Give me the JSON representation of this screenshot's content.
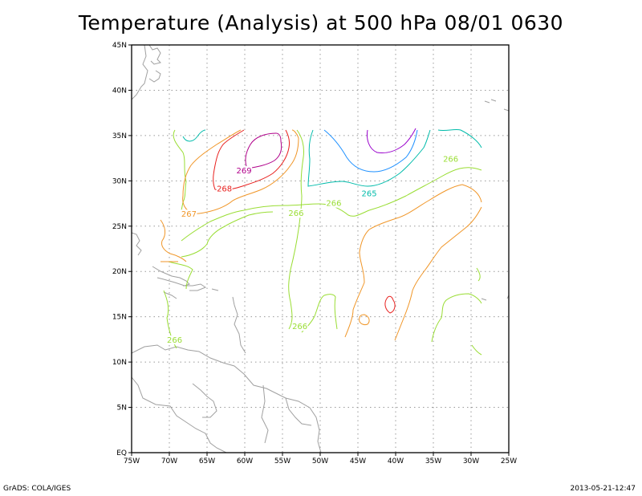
{
  "title": "Temperature (Analysis) at 500 hPa 08/01 0630",
  "footer": {
    "left": "GrADS: COLA/IGES",
    "right": "2013-05-21-12:47"
  },
  "axes": {
    "lon_ticks": [
      "75W",
      "70W",
      "65W",
      "60W",
      "55W",
      "50W",
      "45W",
      "40W",
      "35W",
      "30W",
      "25W"
    ],
    "lat_ticks": [
      "45N",
      "40N",
      "35N",
      "30N",
      "25N",
      "20N",
      "15N",
      "10N",
      "5N",
      "EQ"
    ],
    "lon_range": [
      -75,
      -25
    ],
    "lat_range": [
      0,
      45
    ],
    "grid": "dotted"
  },
  "contour_colors": {
    "265": "#00bbaa",
    "265b": "#1e90ff",
    "264": "#9900cc",
    "266": "#99dd33",
    "267": "#f09628",
    "268": "#e8201e",
    "269": "#b0008a"
  },
  "contour_labels": [
    {
      "text": "269",
      "level": "269",
      "lon": -60.1,
      "lat": 31.0
    },
    {
      "text": "268",
      "level": "268",
      "lon": -62.7,
      "lat": 29.0
    },
    {
      "text": "267",
      "level": "267",
      "lon": -67.4,
      "lat": 26.2
    },
    {
      "text": "266",
      "level": "266",
      "lon": -53.2,
      "lat": 26.3
    },
    {
      "text": "266",
      "level": "266",
      "lon": -48.2,
      "lat": 27.4
    },
    {
      "text": "265",
      "level": "265",
      "lon": -43.5,
      "lat": 28.5
    },
    {
      "text": "266",
      "level": "266",
      "lon": -32.7,
      "lat": 32.3
    },
    {
      "text": "266",
      "level": "266",
      "lon": -52.7,
      "lat": 13.8
    },
    {
      "text": "266",
      "level": "266",
      "lon": -69.3,
      "lat": 12.3
    }
  ]
}
